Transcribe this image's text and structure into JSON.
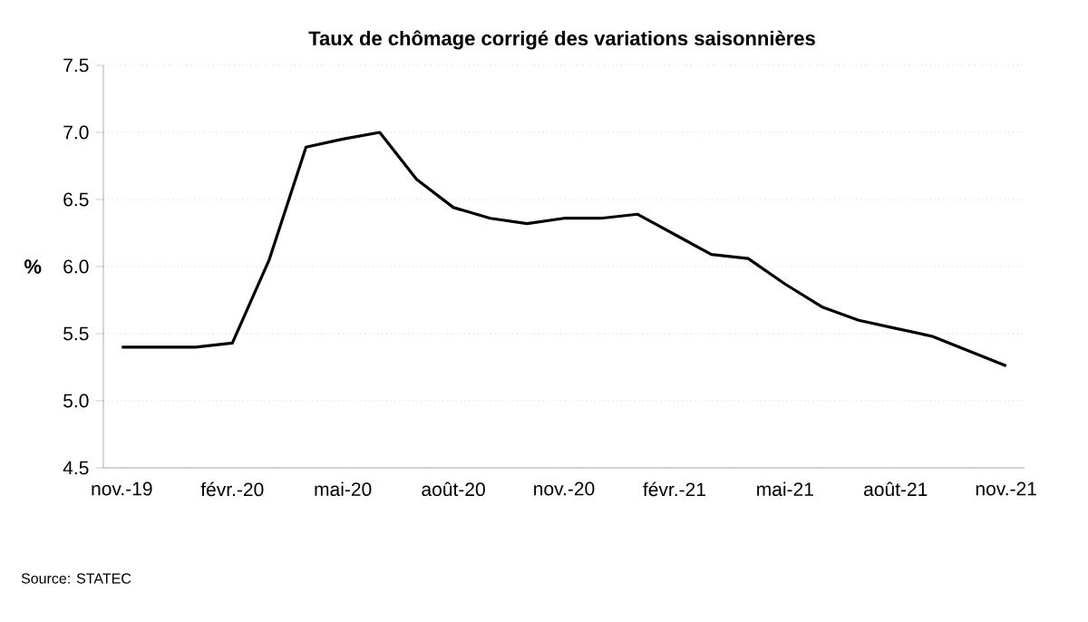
{
  "chart_data": {
    "type": "line",
    "title": "Taux de chômage corrigé des variations saisonnières",
    "ylabel": "%",
    "annotations": [
      "Source: STATEC"
    ],
    "categories": [
      "nov.-19",
      null,
      null,
      "févr.-20",
      null,
      null,
      "mai-20",
      null,
      null,
      "août-20",
      null,
      null,
      "nov.-20",
      null,
      null,
      "févr.-21",
      null,
      null,
      "mai-21",
      null,
      null,
      "août-21",
      null,
      null,
      "nov.-21"
    ],
    "series": [
      {
        "color": "#000000",
        "values": [
          5.4,
          5.4,
          5.4,
          5.43,
          6.05,
          6.89,
          6.95,
          7.0,
          6.65,
          6.44,
          6.36,
          6.32,
          6.36,
          6.36,
          6.39,
          6.24,
          6.09,
          6.06,
          5.87,
          5.7,
          5.6,
          5.54,
          5.48,
          5.37,
          5.26
        ]
      }
    ],
    "ylim": [
      4.5,
      7.5
    ],
    "yticks": [
      4.5,
      {
        "value": 5,
        "label": "5.0"
      },
      5.5,
      {
        "value": 6,
        "label": "6.0"
      },
      6.5,
      {
        "value": 7,
        "label": "7.0"
      },
      7.5
    ],
    "grid": "y",
    "marker": "none",
    "line_style": "solid"
  }
}
